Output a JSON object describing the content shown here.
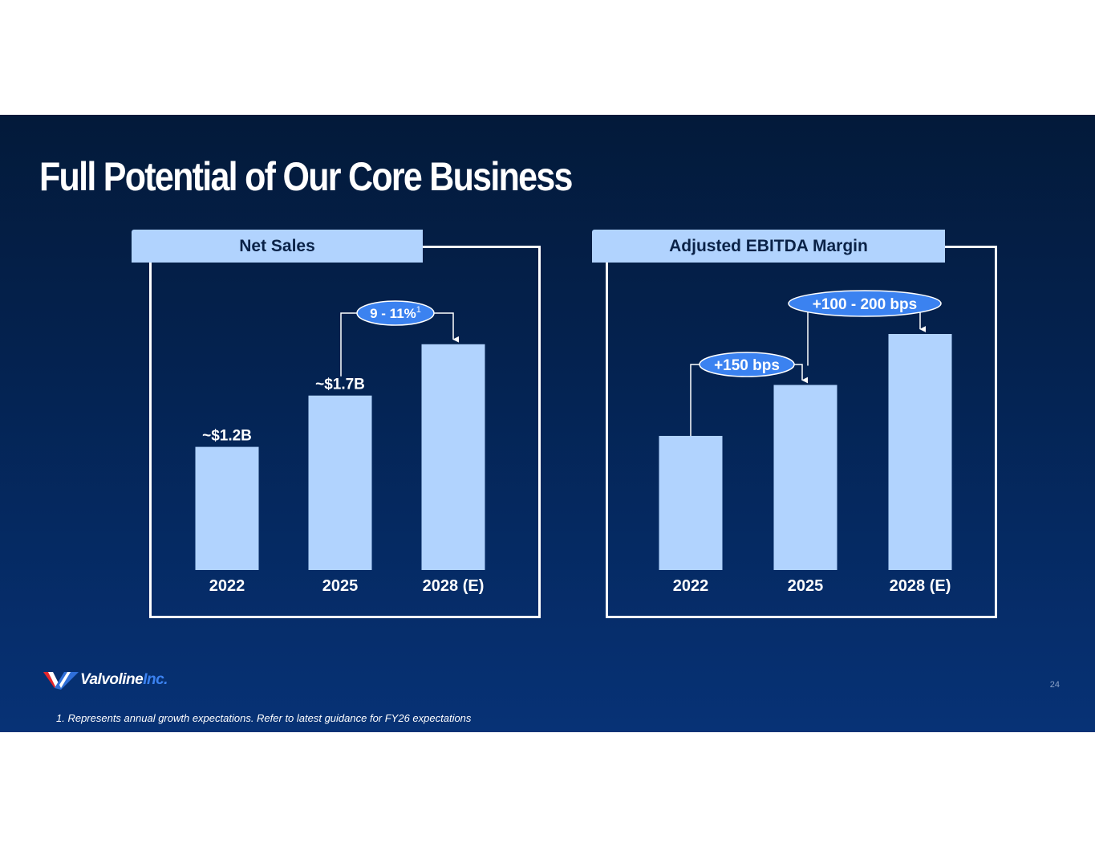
{
  "slide": {
    "title": "Full Potential of Our Core Business",
    "page_number": "24",
    "footnote": "1. Represents annual growth expectations. Refer to latest guidance for FY26 expectations",
    "logo": {
      "brand": "Valvoline",
      "suffix": "Inc.",
      "icon": "valvoline-v-icon"
    },
    "colors": {
      "bar": "#b1d3fe",
      "pill": "#3b82f0",
      "header_bg": "#b1d3fe",
      "background_top": "#031a3a",
      "background_bottom": "#073276"
    }
  },
  "chart_data": [
    {
      "type": "bar",
      "title": "Net Sales",
      "categories": [
        "2022",
        "2025",
        "2028 (E)"
      ],
      "values": [
        1.2,
        1.7,
        2.2
      ],
      "value_labels": [
        "~$1.2B",
        "~$1.7B",
        ""
      ],
      "ylim": [
        0,
        2.3
      ],
      "xlabel": "",
      "ylabel": "",
      "grid": false,
      "annotations": [
        {
          "text": "9 - 11%",
          "superscript": "1",
          "from": "2025",
          "to": "2028 (E)"
        }
      ]
    },
    {
      "type": "bar",
      "title": "Adjusted EBITDA Margin",
      "categories": [
        "2022",
        "2025",
        "2028 (E)"
      ],
      "values": [
        1.0,
        1.38,
        1.76
      ],
      "value_labels": [
        "",
        "",
        ""
      ],
      "ylim": [
        0,
        1.76
      ],
      "xlabel": "",
      "ylabel": "",
      "grid": false,
      "annotations": [
        {
          "text": "+150 bps",
          "superscript": "",
          "from": "2022",
          "to": "2025"
        },
        {
          "text": "+100 - 200 bps",
          "superscript": "",
          "from": "2025",
          "to": "2028 (E)"
        }
      ]
    }
  ]
}
